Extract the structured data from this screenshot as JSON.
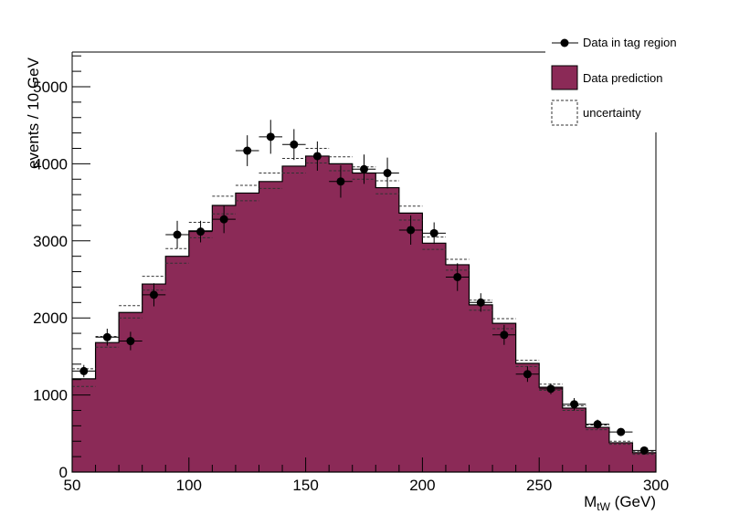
{
  "chart_data": {
    "type": "bar",
    "title": "",
    "xlabel": "M",
    "xlabel_sub": "tW",
    "xlabel_unit": " (GeV)",
    "ylabel": "events / 10 GeV",
    "xlim": [
      50,
      300
    ],
    "ylim": [
      0,
      5450
    ],
    "bin_width": 10,
    "x_ticks": [
      50,
      100,
      150,
      200,
      250,
      300
    ],
    "y_ticks": [
      0,
      1000,
      2000,
      3000,
      4000,
      5000
    ],
    "x_tick_labels": [
      "50",
      "100",
      "150",
      "200",
      "250",
      "300"
    ],
    "y_tick_labels": [
      "0",
      "1000",
      "2000",
      "3000",
      "4000",
      "5000"
    ],
    "bin_centers": [
      55,
      65,
      75,
      85,
      95,
      105,
      115,
      125,
      135,
      145,
      155,
      165,
      175,
      185,
      195,
      205,
      215,
      225,
      235,
      245,
      255,
      265,
      275,
      285,
      295
    ],
    "series": [
      {
        "name": "Data prediction",
        "style": "filled histogram",
        "color": "#8b2a57",
        "values": [
          1210,
          1680,
          2070,
          2440,
          2800,
          3130,
          3460,
          3620,
          3770,
          3970,
          4100,
          4000,
          3880,
          3690,
          3360,
          2970,
          2690,
          2170,
          1930,
          1410,
          1100,
          830,
          580,
          380,
          250
        ]
      },
      {
        "name": "uncertainty",
        "style": "dashed band",
        "color": "#333333",
        "upper": [
          1340,
          1760,
          2160,
          2540,
          2900,
          3240,
          3580,
          3720,
          3880,
          4070,
          4200,
          4090,
          3960,
          3780,
          3450,
          3050,
          2760,
          2230,
          1990,
          1450,
          1140,
          860,
          610,
          400,
          270
        ],
        "lower": [
          1110,
          1620,
          2000,
          2360,
          2710,
          3040,
          3350,
          3520,
          3680,
          3880,
          4010,
          3910,
          3800,
          3610,
          3270,
          2890,
          2620,
          2100,
          1860,
          1370,
          1060,
          800,
          550,
          360,
          230
        ]
      },
      {
        "name": "Data in tag region",
        "style": "markers with error bars",
        "color": "#000000",
        "values": [
          1310,
          1750,
          1700,
          2300,
          3080,
          3120,
          3280,
          4170,
          4350,
          4250,
          4100,
          3770,
          3930,
          3880,
          3140,
          3100,
          2530,
          2200,
          1780,
          1270,
          1080,
          880,
          620,
          520,
          280
        ],
        "errors": [
          80,
          110,
          120,
          150,
          180,
          140,
          180,
          200,
          220,
          200,
          190,
          210,
          190,
          200,
          190,
          140,
          180,
          120,
          130,
          100,
          70,
          80,
          60,
          50,
          40
        ]
      }
    ],
    "legend": {
      "placement": "top-right",
      "entries": [
        "Data in tag region",
        "Data prediction",
        "uncertainty"
      ]
    },
    "grid": false
  }
}
